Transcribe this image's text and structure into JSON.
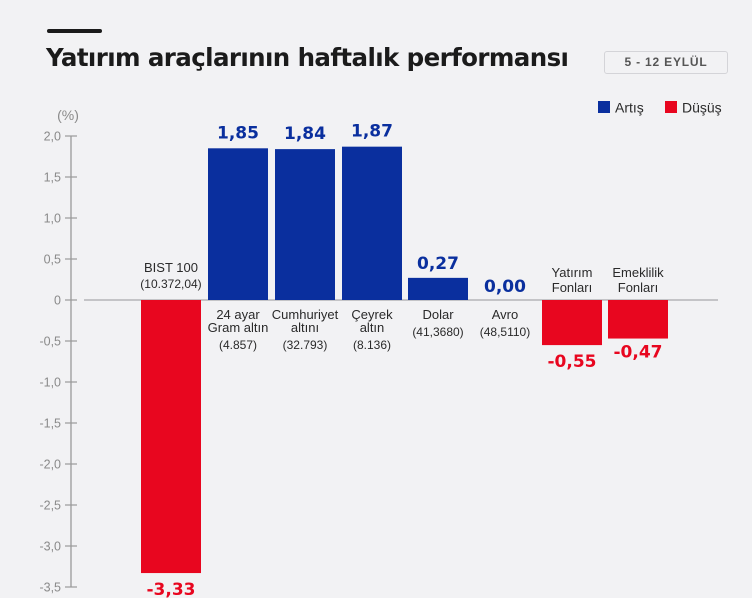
{
  "header": {
    "title": "Yatırım araçlarının haftalık performansı",
    "date_badge": "5 - 12 EYLÜL"
  },
  "colors": {
    "increase": "#0a2f9e",
    "decrease": "#e8061f"
  },
  "chart_data": {
    "type": "bar",
    "title": "Yatırım araçlarının haftalık performansı",
    "subtitle": "5 - 12 EYLÜL",
    "ylabel": "(%)",
    "xlabel": "",
    "ylim": [
      -3.5,
      2.0
    ],
    "yticks": [
      2.0,
      1.5,
      1.0,
      0.5,
      0,
      -0.5,
      -1.0,
      -1.5,
      -2.0,
      -2.5,
      -3.0,
      -3.5
    ],
    "ytick_labels": [
      "2,0",
      "1,5",
      "1,0",
      "0,5",
      "0",
      "-0,5",
      "-1,0",
      "-1,5",
      "-2,0",
      "-2,5",
      "-3,0",
      "-3,5"
    ],
    "grid": false,
    "legend": {
      "placement": "top-right",
      "entries": [
        {
          "name": "Artış",
          "color": "#0a2f9e"
        },
        {
          "name": "Düşüş",
          "color": "#e8061f"
        }
      ]
    },
    "categories": [
      {
        "name_lines": [
          "BIST 100"
        ],
        "sub": "(10.372,04)",
        "value": -3.33,
        "value_label": "-3,33"
      },
      {
        "name_lines": [
          "24 ayar",
          "Gram altın"
        ],
        "sub": "(4.857)",
        "value": 1.85,
        "value_label": "1,85"
      },
      {
        "name_lines": [
          "Cumhuriyet",
          "altını"
        ],
        "sub": "(32.793)",
        "value": 1.84,
        "value_label": "1,84"
      },
      {
        "name_lines": [
          "Çeyrek",
          "altın"
        ],
        "sub": "(8.136)",
        "value": 1.87,
        "value_label": "1,87"
      },
      {
        "name_lines": [
          "Dolar"
        ],
        "sub": "(41,3680)",
        "value": 0.27,
        "value_label": "0,27"
      },
      {
        "name_lines": [
          "Avro"
        ],
        "sub": "(48,5110)",
        "value": 0.0,
        "value_label": "0,00"
      },
      {
        "name_lines": [
          "Yatırım",
          "Fonları"
        ],
        "sub": "",
        "value": -0.55,
        "value_label": "-0,55"
      },
      {
        "name_lines": [
          "Emeklilik",
          "Fonları"
        ],
        "sub": "",
        "value": -0.47,
        "value_label": "-0,47"
      }
    ]
  }
}
